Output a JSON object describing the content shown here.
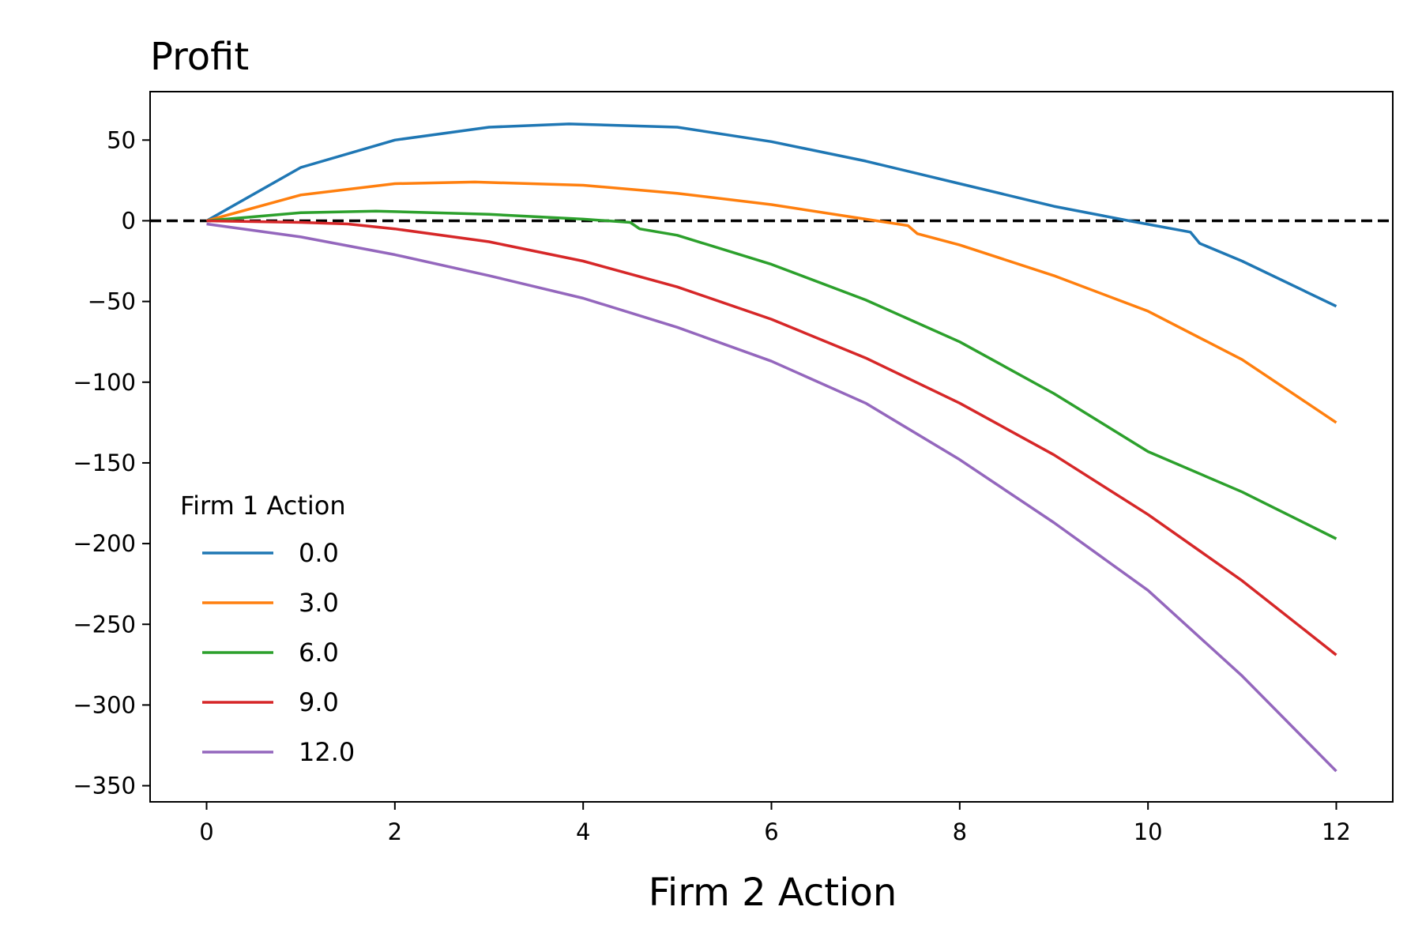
{
  "chart_data": {
    "type": "line",
    "title": "Profit",
    "xlabel": "Firm 2 Action",
    "ylabel": "",
    "xlim": [
      -0.6,
      12.6
    ],
    "ylim": [
      -360,
      80
    ],
    "xticks": [
      0,
      2,
      4,
      6,
      8,
      10,
      12
    ],
    "yticks": [
      50,
      0,
      -50,
      -100,
      -150,
      -200,
      -250,
      -300,
      -350
    ],
    "grid": false,
    "legend": {
      "title": "Firm 1 Action",
      "placement": "lower-left"
    },
    "reference_line": {
      "y": 0,
      "style": "dashed",
      "color": "#000000"
    },
    "series": [
      {
        "name": "0.0",
        "color": "#1f77b4",
        "x": [
          0,
          1,
          2,
          3,
          3.85,
          5,
          6,
          7,
          8,
          9,
          9.8,
          10.45,
          10.55,
          11,
          12
        ],
        "y": [
          0,
          33,
          50,
          58,
          60,
          58,
          49,
          37,
          23,
          9,
          0,
          -7,
          -14,
          -25,
          -53
        ]
      },
      {
        "name": "3.0",
        "color": "#ff7f0e",
        "x": [
          0,
          1,
          2,
          2.85,
          4,
          5,
          6,
          7,
          7.45,
          7.55,
          8,
          9,
          10,
          11,
          12
        ],
        "y": [
          0,
          16,
          23,
          24,
          22,
          17,
          10,
          1,
          -3,
          -8,
          -15,
          -34,
          -56,
          -86,
          -125
        ]
      },
      {
        "name": "6.0",
        "color": "#2ca02c",
        "x": [
          0,
          1,
          1.8,
          3,
          4,
          4.5,
          4.6,
          5,
          6,
          7,
          8,
          9,
          10,
          11,
          12
        ],
        "y": [
          0,
          5,
          6,
          4,
          1,
          -1,
          -5,
          -9,
          -27,
          -49,
          -75,
          -107,
          -143,
          -168,
          -197
        ]
      },
      {
        "name": "9.0",
        "color": "#d62728",
        "x": [
          0,
          1,
          1.5,
          2,
          3,
          4,
          5,
          6,
          7,
          8,
          9,
          10,
          11,
          12
        ],
        "y": [
          0,
          -1,
          -2,
          -5,
          -13,
          -25,
          -41,
          -61,
          -85,
          -113,
          -145,
          -182,
          -223,
          -269
        ]
      },
      {
        "name": "12.0",
        "color": "#9467bd",
        "x": [
          0,
          1,
          2,
          3,
          4,
          5,
          6,
          7,
          8,
          9,
          10,
          11,
          12
        ],
        "y": [
          -2,
          -10,
          -21,
          -34,
          -48,
          -66,
          -87,
          -113,
          -148,
          -187,
          -229,
          -282,
          -341
        ]
      }
    ]
  }
}
